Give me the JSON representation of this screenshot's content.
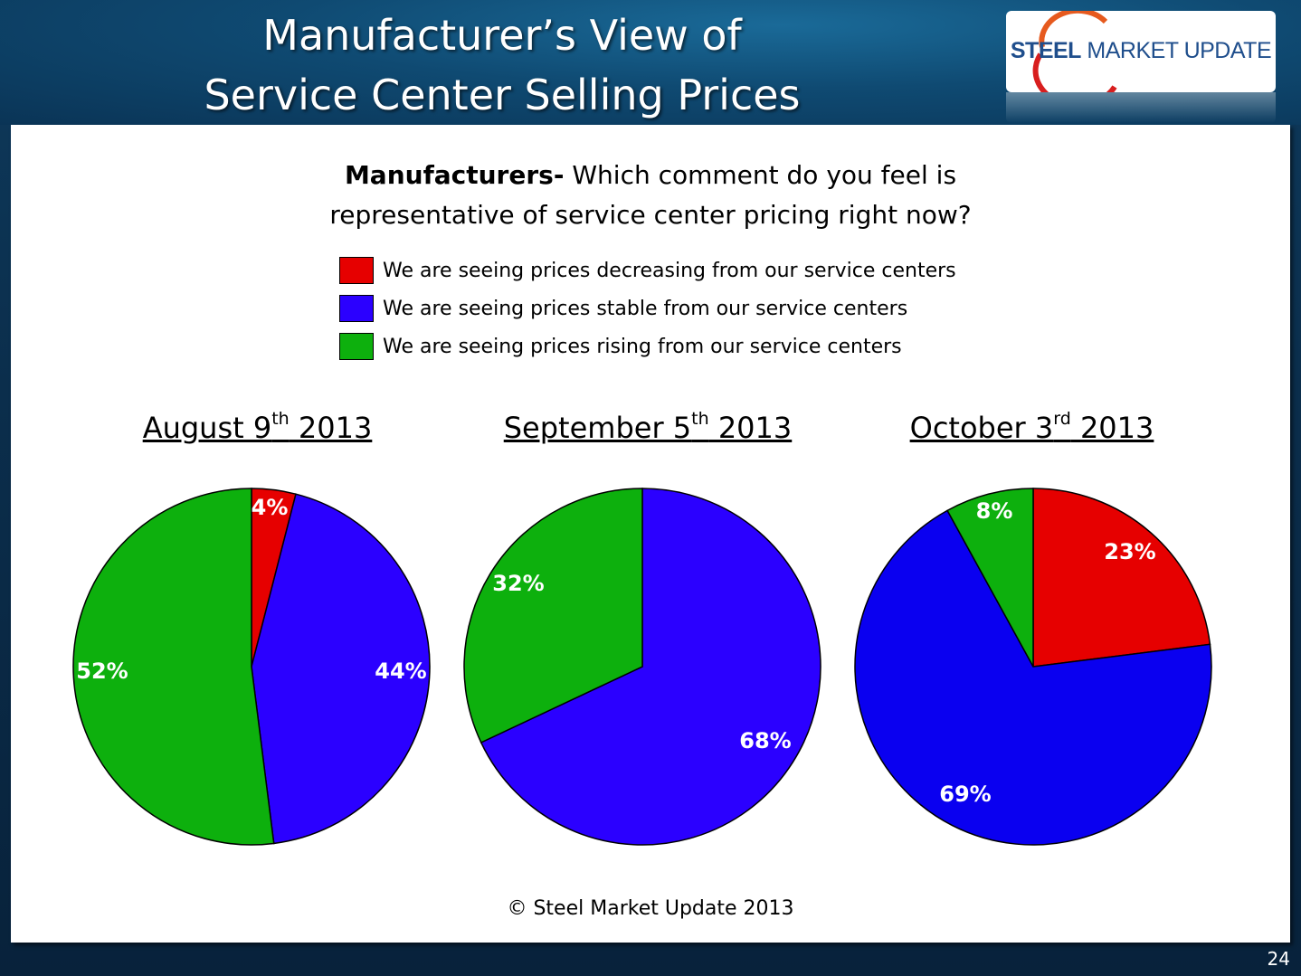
{
  "title": {
    "line1": "Manufacturer’s View of",
    "line2": "Service Center Selling Prices"
  },
  "logo": {
    "bold": "STEEL",
    "rest": " MARKET UPDATE"
  },
  "question": {
    "bold": "Manufacturers-",
    "line1_rest": " Which comment do you feel is",
    "line2": "representative of service center pricing right now?"
  },
  "legend": [
    {
      "label": "We are seeing prices decreasing from our service centers",
      "color": "#e60000"
    },
    {
      "label": "We are seeing prices stable from our service centers",
      "color": "#2b00ff"
    },
    {
      "label": "We are seeing prices rising from our service centers",
      "color": "#0db00d"
    }
  ],
  "periods": [
    {
      "month": "August 9",
      "sup": "th",
      "year": " 2013"
    },
    {
      "month": "September 5",
      "sup": "th",
      "year": " 2013"
    },
    {
      "month": "October 3",
      "sup": "rd",
      "year": " 2013"
    }
  ],
  "chart_data": [
    {
      "type": "pie",
      "title": "August 9th 2013",
      "categories": [
        "Decreasing",
        "Stable",
        "Rising"
      ],
      "values": [
        4,
        44,
        52
      ],
      "labels": [
        "4%",
        "44%",
        "52%"
      ],
      "colors": [
        "#e60000",
        "#2b00ff",
        "#0db00d"
      ]
    },
    {
      "type": "pie",
      "title": "September 5th 2013",
      "categories": [
        "Decreasing",
        "Stable",
        "Rising"
      ],
      "values": [
        0,
        68,
        32
      ],
      "labels": [
        "",
        "68%",
        "32%"
      ],
      "colors": [
        "#e60000",
        "#2b00ff",
        "#0db00d"
      ]
    },
    {
      "type": "pie",
      "title": "October 3rd 2013",
      "categories": [
        "Decreasing",
        "Stable",
        "Rising"
      ],
      "values": [
        23,
        69,
        8
      ],
      "labels": [
        "23%",
        "69%",
        "8%"
      ],
      "colors": [
        "#e60000",
        "#0a00f0",
        "#0db00d"
      ]
    }
  ],
  "copyright": "© Steel Market Update 2013",
  "page_number": "24"
}
